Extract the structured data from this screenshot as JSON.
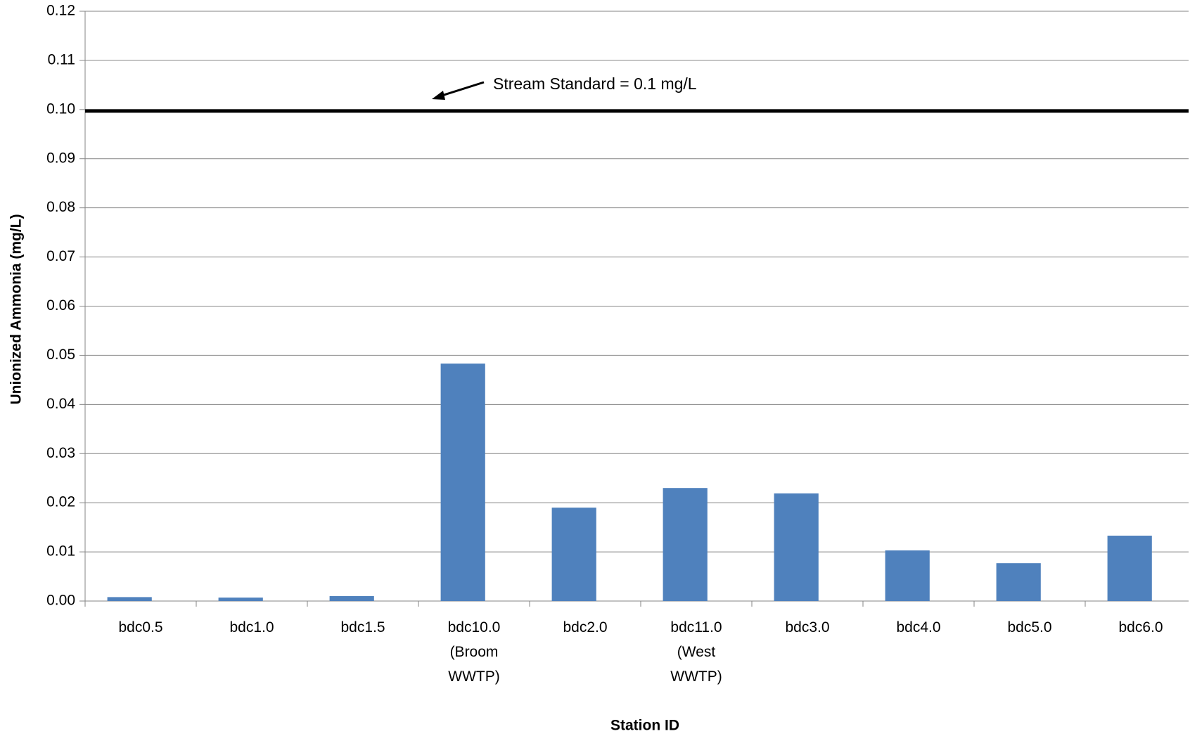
{
  "chart_data": {
    "type": "bar",
    "x_label": "Station ID",
    "y_label": "Unionized Ammonia (mg/L)",
    "categories": [
      "bdc0.5",
      "bdc1.0",
      "bdc1.5",
      "bdc10.0 (Broom WWTP)",
      "bdc2.0",
      "bdc11.0 (West WWTP)",
      "bdc3.0",
      "bdc4.0",
      "bdc5.0",
      "bdc6.0"
    ],
    "values": [
      0.0008,
      0.0007,
      0.001,
      0.0483,
      0.019,
      0.023,
      0.0219,
      0.0103,
      0.0077,
      0.0133
    ],
    "color": "#4f81bd",
    "ylim": [
      0,
      0.12
    ],
    "yticks": [
      {
        "value": 0,
        "label": "0.00"
      },
      0.01,
      0.02,
      0.03,
      0.04,
      0.05,
      0.06,
      0.07,
      0.08,
      0.09,
      {
        "value": 0.1,
        "label": "0.10"
      },
      0.11,
      0.12
    ],
    "grid": true,
    "reference_line": {
      "value": 0.1,
      "label": "Stream Standard = 0.1 mg/L",
      "color": "#000000"
    }
  }
}
